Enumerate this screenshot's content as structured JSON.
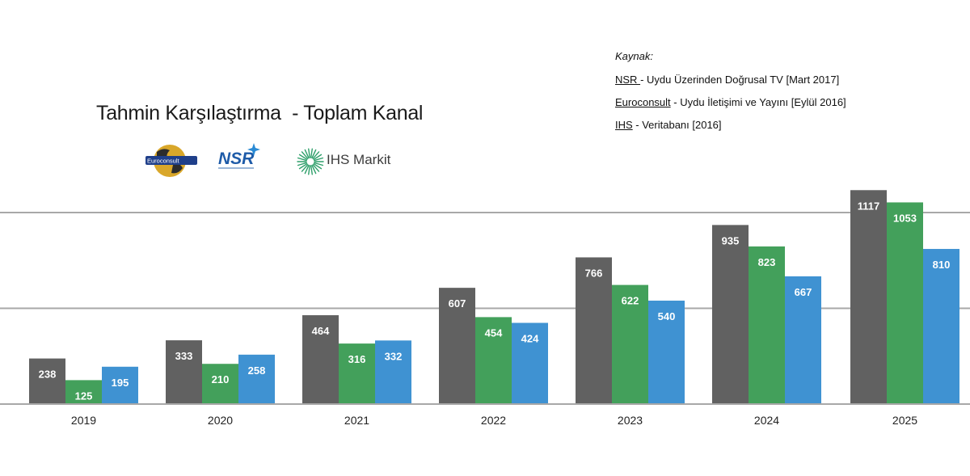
{
  "header": {
    "title": "Tahmin Karşılaştırma  - Toplam Kanal"
  },
  "sources": {
    "heading": "Kaynak:",
    "items": [
      {
        "name": "NSR ",
        "text": "- Uydu Üzerinden Doğrusal TV [Mart 2017]"
      },
      {
        "name": "Euroconsult",
        "text": " - Uydu İletişimi ve Yayını [Eylül 2016]"
      },
      {
        "name": "IHS",
        "text": " - Veritabanı [2016]"
      }
    ]
  },
  "logos": {
    "euroconsult": "Euroconsult",
    "nsr": "NSR",
    "ihs": "IHS Markit"
  },
  "colors": {
    "nsr": "#616161",
    "euroconsult": "#43a05b",
    "ihs": "#3f92d2",
    "gridline": "#a8a8a8"
  },
  "chart_data": {
    "type": "bar",
    "categories": [
      "2019",
      "2020",
      "2021",
      "2022",
      "2023",
      "2024",
      "2025"
    ],
    "series": [
      {
        "values": [
          238,
          333,
          464,
          607,
          766,
          935,
          1117
        ],
        "color": "#616161"
      },
      {
        "values": [
          125,
          210,
          316,
          454,
          622,
          823,
          1053
        ],
        "color": "#43a05b"
      },
      {
        "values": [
          195,
          258,
          332,
          424,
          540,
          667,
          810
        ],
        "color": "#3f92d2"
      }
    ],
    "ylim": [
      0,
      1200
    ],
    "gridlines": [
      500,
      1000
    ],
    "data_labels": true,
    "legend": false
  }
}
